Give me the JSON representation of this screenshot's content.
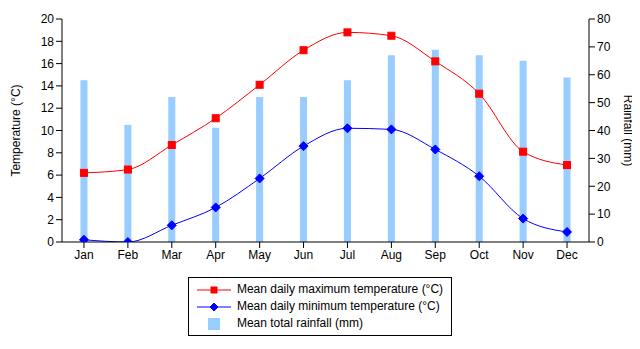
{
  "chart_data": {
    "type": "line",
    "categories": [
      "Jan",
      "Feb",
      "Mar",
      "Apr",
      "May",
      "Jun",
      "Jul",
      "Aug",
      "Sep",
      "Oct",
      "Nov",
      "Dec"
    ],
    "series": [
      {
        "name": "Mean daily maximum temperature (°C)",
        "type": "line",
        "color": "#ff0000",
        "marker": "square",
        "values": [
          6.2,
          6.5,
          8.7,
          11.1,
          14.1,
          17.2,
          18.8,
          18.5,
          16.2,
          13.3,
          8.1,
          6.9
        ]
      },
      {
        "name": "Mean daily minimum temperature (°C)",
        "type": "line",
        "color": "#0000ff",
        "marker": "diamond",
        "values": [
          0.2,
          0.0,
          1.5,
          3.1,
          5.7,
          8.6,
          10.2,
          10.1,
          8.3,
          5.9,
          2.1,
          0.9
        ]
      },
      {
        "name": "Mean total rainfall (mm)",
        "type": "bar",
        "color": "#99ccff",
        "axis": "y2",
        "values": [
          58,
          42,
          52,
          41,
          52,
          52,
          58,
          67,
          69,
          67,
          65,
          59
        ]
      }
    ],
    "y_label": "Temperature (°C)",
    "y2_label": "Rainfall (mm)",
    "ylim": [
      0,
      20
    ],
    "yticks": [
      0,
      2,
      4,
      6,
      8,
      10,
      12,
      14,
      16,
      18,
      20
    ],
    "y2lim": [
      0,
      80
    ],
    "y2ticks": [
      0,
      10,
      20,
      30,
      40,
      50,
      60,
      70,
      80
    ],
    "grid": false,
    "legend": "bottom"
  }
}
